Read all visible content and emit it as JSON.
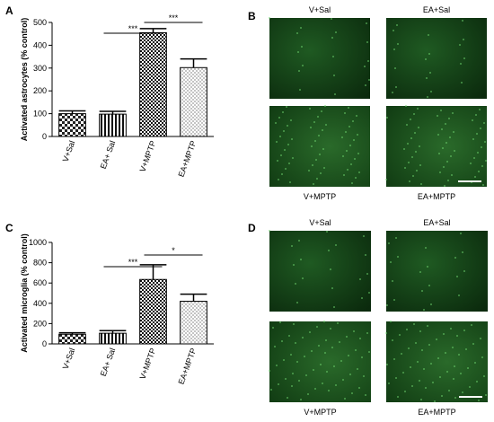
{
  "chart_data": [
    {
      "type": "bar",
      "ylabel": "Activated astrocytes (% control)",
      "categories": [
        "V+Sal",
        "EA+ Sal",
        "V+MPTP",
        "EA+MPTP"
      ],
      "values": [
        100,
        98,
        455,
        302
      ],
      "errors": [
        12,
        12,
        18,
        38
      ],
      "patterns": [
        "checker",
        "vertical",
        "checker-dense",
        "dots"
      ],
      "color": "#000000",
      "ylim": [
        0,
        500
      ],
      "yticks": [
        0,
        100,
        200,
        300,
        400,
        500
      ],
      "annotations": [
        "***",
        "***"
      ]
    },
    {
      "type": "bar",
      "ylabel": "Activated microglia (% control)",
      "categories": [
        "V+Sal",
        "EA+ Sal",
        "V+MPTP",
        "EA+MPTP"
      ],
      "values": [
        95,
        105,
        635,
        420
      ],
      "errors": [
        15,
        25,
        145,
        70
      ],
      "patterns": [
        "checker",
        "vertical",
        "checker-dense",
        "dots"
      ],
      "color": "#000000",
      "ylim": [
        0,
        1000
      ],
      "yticks": [
        0,
        200,
        400,
        600,
        800,
        1000
      ],
      "annotations": [
        "***",
        "*"
      ]
    }
  ],
  "panel_labels": [
    "A",
    "B",
    "C",
    "D"
  ],
  "image_panels": [
    {
      "labels": [
        "V+Sal",
        "EA+Sal",
        "V+MPTP",
        "EA+MPTP"
      ]
    },
    {
      "labels": [
        "V+Sal",
        "EA+Sal",
        "V+MPTP",
        "EA+MPTP"
      ]
    }
  ]
}
